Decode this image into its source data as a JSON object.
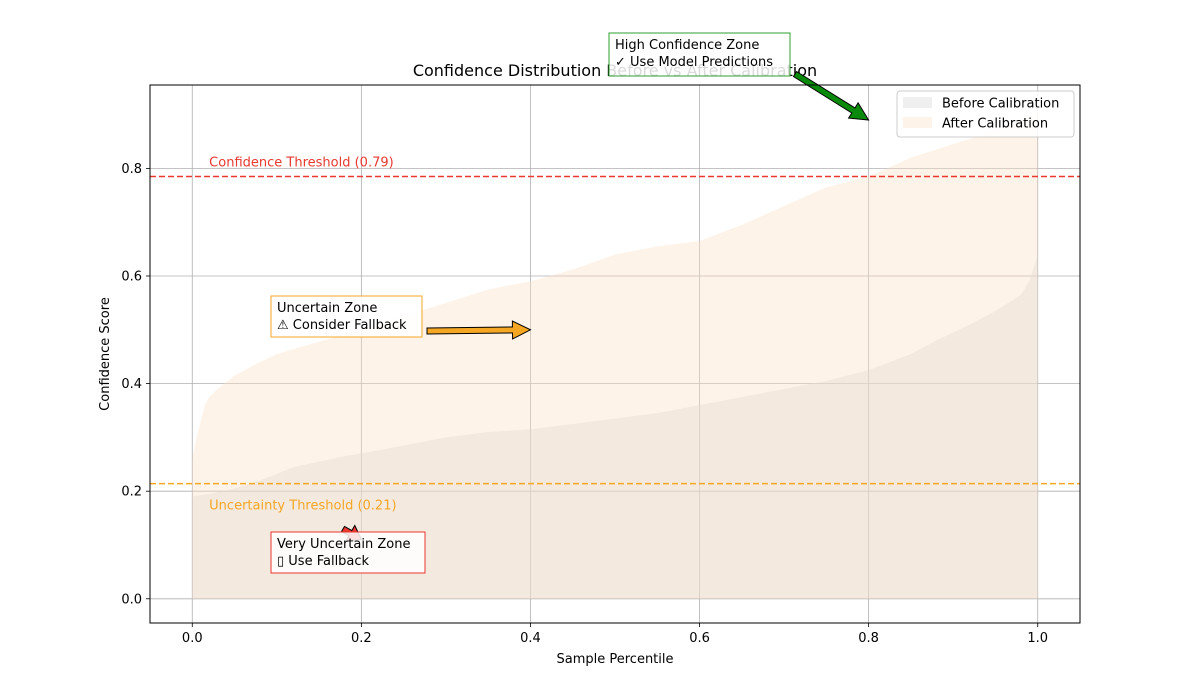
{
  "chart_data": {
    "type": "area",
    "title": "Confidence Distribution Before vs After Calibration",
    "xlabel": "Sample Percentile",
    "ylabel": "Confidence Score",
    "xlim": [
      -0.05,
      1.05
    ],
    "ylim": [
      -0.045,
      0.955
    ],
    "xticks": [
      "0.0",
      "0.2",
      "0.4",
      "0.6",
      "0.8",
      "1.0"
    ],
    "yticks": [
      "0.0",
      "0.2",
      "0.4",
      "0.6",
      "0.8"
    ],
    "grid": true,
    "legend_position": "top-right",
    "series": [
      {
        "name": "Before Calibration",
        "color": "#d9d9d9",
        "x": [
          0.0,
          0.02,
          0.05,
          0.08,
          0.1,
          0.12,
          0.15,
          0.18,
          0.2,
          0.25,
          0.3,
          0.35,
          0.4,
          0.45,
          0.5,
          0.55,
          0.6,
          0.65,
          0.7,
          0.75,
          0.8,
          0.85,
          0.88,
          0.9,
          0.92,
          0.95,
          0.97,
          0.98,
          0.99,
          1.0
        ],
        "values": [
          0.19,
          0.195,
          0.205,
          0.22,
          0.232,
          0.245,
          0.255,
          0.265,
          0.27,
          0.285,
          0.3,
          0.31,
          0.315,
          0.325,
          0.335,
          0.345,
          0.36,
          0.375,
          0.39,
          0.405,
          0.425,
          0.455,
          0.48,
          0.495,
          0.51,
          0.535,
          0.555,
          0.565,
          0.59,
          0.64
        ]
      },
      {
        "name": "After Calibration",
        "color": "#fde0c4",
        "x": [
          0.0,
          0.005,
          0.01,
          0.015,
          0.02,
          0.03,
          0.05,
          0.08,
          0.1,
          0.15,
          0.2,
          0.25,
          0.3,
          0.35,
          0.4,
          0.45,
          0.5,
          0.55,
          0.6,
          0.65,
          0.7,
          0.75,
          0.8,
          0.85,
          0.9,
          0.95,
          1.0
        ],
        "values": [
          0.26,
          0.3,
          0.33,
          0.36,
          0.375,
          0.39,
          0.415,
          0.44,
          0.455,
          0.478,
          0.5,
          0.525,
          0.55,
          0.575,
          0.59,
          0.612,
          0.64,
          0.655,
          0.665,
          0.695,
          0.73,
          0.765,
          0.785,
          0.82,
          0.845,
          0.87,
          0.905
        ]
      }
    ],
    "thresholds": [
      {
        "label": "Confidence Threshold (0.79)",
        "value": 0.785,
        "color": "#e8382f"
      },
      {
        "label": "Uncertainty Threshold (0.21)",
        "value": 0.214,
        "color": "#f5a623"
      }
    ],
    "annotations": [
      {
        "line1": "High Confidence Zone",
        "line2": "✓ Use Model Predictions",
        "color": "#2ca02c",
        "arrow_color": "#0a8a0a",
        "target": [
          0.8,
          0.89
        ]
      },
      {
        "line1": "Uncertain Zone",
        "line2": "⚠ Consider Fallback",
        "color": "#f5a623",
        "arrow_color": "#f5a623",
        "target": [
          0.4,
          0.5
        ]
      },
      {
        "line1": "Very Uncertain Zone",
        "line2": "▯ Use Fallback",
        "color": "#e8382f",
        "arrow_color": "#e8382f",
        "target": [
          0.2,
          0.11
        ]
      }
    ]
  }
}
